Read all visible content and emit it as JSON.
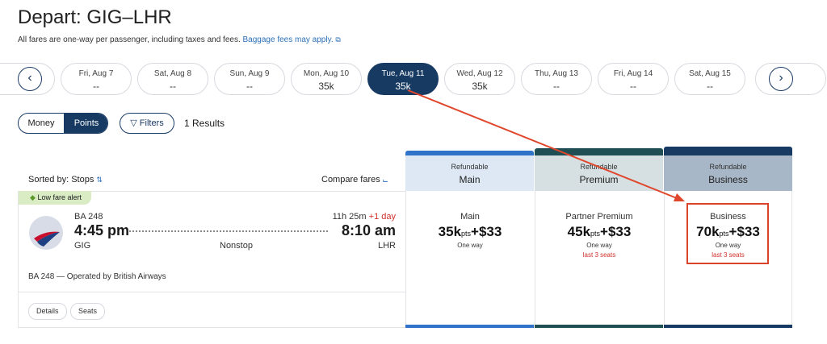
{
  "header": {
    "title": "Depart: GIG–LHR",
    "subtitle": "All fares are one-way per passenger, including taxes and fees.",
    "link": "Baggage fees may apply."
  },
  "dates": [
    {
      "day": "Fri, Aug 7",
      "price": "--"
    },
    {
      "day": "Sat, Aug 8",
      "price": "--"
    },
    {
      "day": "Sun, Aug 9",
      "price": "--"
    },
    {
      "day": "Mon, Aug 10",
      "price": "35k"
    },
    {
      "day": "Tue, Aug 11",
      "price": "35k"
    },
    {
      "day": "Wed, Aug 12",
      "price": "35k"
    },
    {
      "day": "Thu, Aug 13",
      "price": "--"
    },
    {
      "day": "Fri, Aug 14",
      "price": "--"
    },
    {
      "day": "Sat, Aug 15",
      "price": "--"
    }
  ],
  "toolbar": {
    "money": "Money",
    "points": "Points",
    "filters": "Filters",
    "results": "1 Results"
  },
  "list": {
    "sorted": "Sorted by: Stops",
    "compare": "Compare fares"
  },
  "flight": {
    "alert": "Low fare alert",
    "number": "BA 248",
    "depart": "4:45 pm",
    "duration": "11h 25m",
    "plus_day": "+1 day",
    "arrive": "8:10 am",
    "from": "GIG",
    "stops": "Nonstop",
    "to": "LHR",
    "operated": "BA 248 — Operated by British Airways",
    "details": "Details",
    "seats": "Seats"
  },
  "fares": [
    {
      "refund": "Refundable",
      "cabin": "Main",
      "name": "Main",
      "points": "35k",
      "unit": "pts",
      "cash": "+$33",
      "note": "One way",
      "color": "#2f74c8",
      "bg": "#dde8f4"
    },
    {
      "refund": "Refundable",
      "cabin": "Premium",
      "name": "Partner Premium",
      "points": "45k",
      "unit": "pts",
      "cash": "+$33",
      "note": "One way",
      "seats": "last 3 seats",
      "color": "#1f4f55",
      "bg": "#d6dfe1"
    },
    {
      "refund": "Refundable",
      "cabin": "Business",
      "name": "Business",
      "points": "70k",
      "unit": "pts",
      "cash": "+$33",
      "note": "One way",
      "seats": "last 3 seats",
      "color": "#163a62",
      "bg": "#a8b7c7"
    }
  ]
}
